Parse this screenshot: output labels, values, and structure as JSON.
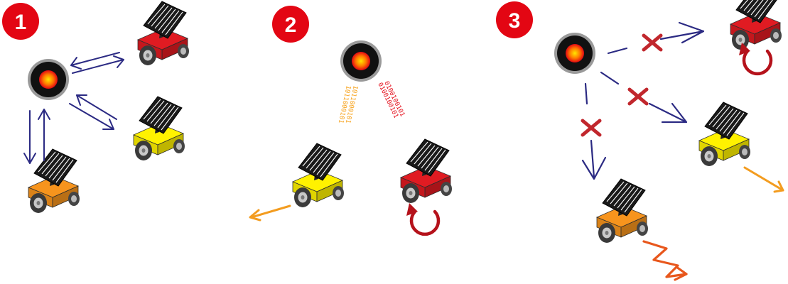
{
  "panels": [
    {
      "number": "1"
    },
    {
      "number": "2"
    },
    {
      "number": "3"
    }
  ],
  "binary_streams": {
    "left": "1011000101",
    "right": "0100100101"
  },
  "colors": {
    "badge": "#e30613",
    "arrow_blue": "#2b2a83",
    "cross_red": "#c1272d",
    "rotation_red": "#b5121b",
    "motion_orange": "#f39c1f",
    "zigzag_orange": "#e8571c",
    "bits_orange": "#f7a21b",
    "bits_red": "#e30613",
    "robot_red": "#e01b22",
    "robot_yellow": "#fff200",
    "robot_orange": "#f7941d"
  },
  "icons": {
    "beacon": "beacon-icon",
    "robot": "solar-robot-icon",
    "rotate": "rotate-arrow-icon",
    "cross": "cross-icon"
  }
}
